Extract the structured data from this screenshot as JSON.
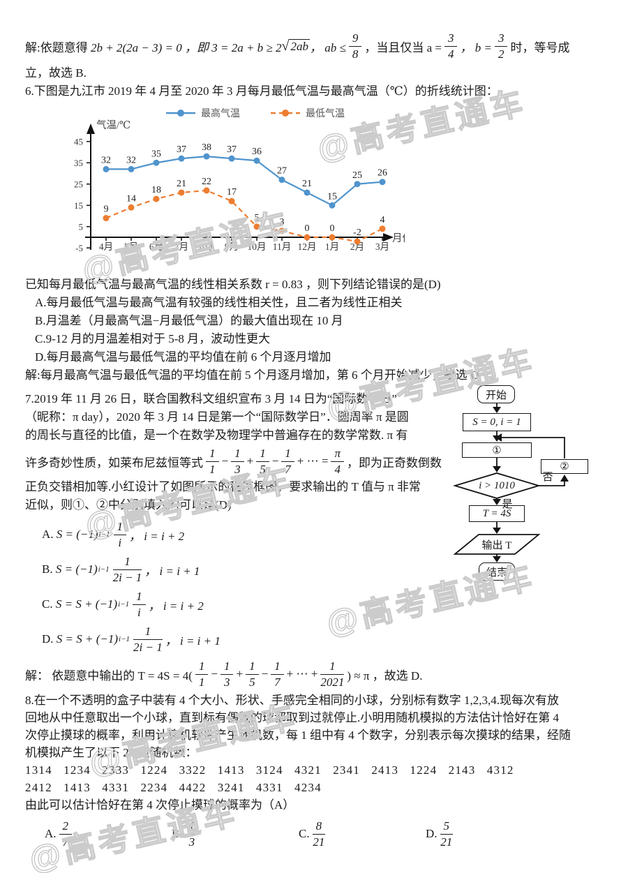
{
  "watermark": {
    "text": "@高考直通车"
  },
  "sol5": {
    "prefix": "解:依题意得 ",
    "f1": "2b + 2(2a − 3) = 0 ，即 3 = 2a + b ≥ 2",
    "radical": "√",
    "sqrt_arg": "2ab",
    "mid1": "， ab ≤",
    "frac98": {
      "num": "9",
      "den": "8"
    },
    "mid2": "，当且仅当 a =",
    "frac34": {
      "num": "3",
      "den": "4"
    },
    "mid3": "， b =",
    "frac32": {
      "num": "3",
      "den": "2"
    },
    "suffix": "时，等号成",
    "line2": "立，故选 B."
  },
  "q6": {
    "intro": "6.下图是九江市 2019 年 4 月至 2020 年 3 月每月最低气温与最高气温（℃）的折线统计图：",
    "known": "已知每月最低气温与最高气温的线性相关系数 r = 0.83 ，则下列结论错误的是(D)",
    "options": [
      "A.每月最低气温与最高气温有较强的线性相关性，且二者为线性正相关",
      "B.月温差（月最高气温−月最低气温）的最大值出现在 10 月",
      "C.9-12 月的月温差相对于 5-8 月，波动性更大",
      "D.每月最高气温与最低气温的平均值在前 6 个月逐月增加"
    ],
    "solution": "解:每月最高气温与最低气温的平均值在前 5 个月逐月增加，第 6 个月开始减少，故选 D."
  },
  "chart_data": {
    "type": "line",
    "title": "",
    "ylabel": "气温/℃",
    "xlabel": "月份",
    "categories": [
      "4月",
      "5月",
      "6月",
      "7月",
      "8月",
      "9月",
      "10月",
      "11月",
      "12月",
      "1月",
      "2月",
      "3月"
    ],
    "series": [
      {
        "name": "最高气温",
        "color": "#4f94cd",
        "style": "solid",
        "values": [
          32,
          32,
          35,
          37,
          38,
          37,
          36,
          27,
          21,
          15,
          25,
          26
        ]
      },
      {
        "name": "最低气温",
        "color": "#ed7d31",
        "style": "dashed",
        "values": [
          9,
          14,
          18,
          21,
          22,
          17,
          5,
          3,
          0,
          0,
          -2,
          4
        ]
      }
    ],
    "yticks": [
      45,
      35,
      25,
      15,
      5,
      -5
    ],
    "ylim": [
      -5,
      45
    ],
    "legend_position": "top",
    "grid": false
  },
  "q7": {
    "lines": [
      "7.2019 年 11 月 26 日，联合国教科文组织宣布 3 月 14 日为“国际数学日”",
      "（昵称：π day），2020 年 3 月 14 日是第一个“国际数学日”．圆周率 π 是圆",
      "的周长与直径的比值，是一个在数学及物理学中普遍存在的数学常数. π 有"
    ],
    "line4": {
      "pre": "许多奇妙性质，如莱布尼兹恒等式",
      "terms": [
        {
          "num": "1",
          "den": "1"
        },
        {
          "num": "1",
          "den": "3"
        },
        {
          "num": "1",
          "den": "5"
        },
        {
          "num": "1",
          "den": "7"
        }
      ],
      "ops": [
        "−",
        "+",
        "−",
        "+ ⋯ ="
      ],
      "result": {
        "num": "π",
        "den": "4"
      },
      "post": "，即为正奇数倒数"
    },
    "lines2": [
      "正负交错相加等.小红设计了如图所示的程序框图，要求输出的 T 值与 π 非常",
      "近似，则①、②中分别填入的可以是(D)"
    ],
    "options": [
      {
        "label": "A. ",
        "pre": "S = (−1)",
        "sup": "i−1",
        "frac": {
          "num": "1",
          "den": "i"
        },
        "post": "， i = i + 2"
      },
      {
        "label": "B. ",
        "pre": "S = (−1)",
        "sup": "i−1",
        "frac": {
          "num": "1",
          "den": "2i − 1"
        },
        "post": "， i = i + 1"
      },
      {
        "label": "C. ",
        "pre": "S = S + (−1)",
        "sup": "i−1",
        "frac": {
          "num": "1",
          "den": "i"
        },
        "post": "， i = i + 2"
      },
      {
        "label": "D. ",
        "pre": "S = S + (−1)",
        "sup": "i−1",
        "frac": {
          "num": "1",
          "den": "2i − 1"
        },
        "post": "， i = i + 1"
      }
    ],
    "solution": {
      "pre": "解： 依题意中输出的 T = 4S = 4(",
      "terms": [
        {
          "num": "1",
          "den": "1"
        },
        {
          "num": "1",
          "den": "3"
        },
        {
          "num": "1",
          "den": "5"
        },
        {
          "num": "1",
          "den": "7"
        }
      ],
      "ops": [
        "−",
        "+",
        "−",
        "+ ⋯ +"
      ],
      "last": {
        "num": "1",
        "den": "2021"
      },
      "post": ") ≈ π ，故选 D."
    }
  },
  "flowchart": {
    "start": "开始",
    "init": "S = 0, i = 1",
    "box1": "①",
    "box2": "②",
    "cond": "i > 1010",
    "yes": "是",
    "no": "否",
    "assign": "T = 4S",
    "output": "输出 T",
    "end": "结束"
  },
  "q8": {
    "lines": [
      "8.在一个不透明的盒子中装有 4 个大小、形状、手感完全相同的小球，分别标有数字 1,2,3,4.现每次有放",
      "回地从中任意取出一个小球，直到标有偶数的球都取到过就停止.小明用随机模拟的方法估计恰好在第 4",
      "次停止摸球的概率，利用计算机软件产生随机数，每 1 组中有 4 个数字，分别表示每次摸球的结果，经随",
      "机模拟产生了以下 21 组随机数："
    ],
    "random_rows": [
      [
        "1314",
        "1234",
        "2333",
        "1224",
        "3322",
        "1413",
        "3124",
        "4321",
        "2341",
        "2413",
        "1224",
        "2143",
        "4312"
      ],
      [
        "2412",
        "1413",
        "4331",
        "2234",
        "4422",
        "3241",
        "4331",
        "4234"
      ]
    ],
    "conclusion": "由此可以估计恰好在第 4 次停止摸球的概率为（A）",
    "options": [
      {
        "label": "A. ",
        "frac": {
          "num": "2",
          "den": "7"
        }
      },
      {
        "label": "B. ",
        "frac": {
          "num": "1",
          "den": "3"
        }
      },
      {
        "label": "C. ",
        "frac": {
          "num": "8",
          "den": "21"
        }
      },
      {
        "label": "D. ",
        "frac": {
          "num": "5",
          "den": "21"
        }
      }
    ]
  }
}
